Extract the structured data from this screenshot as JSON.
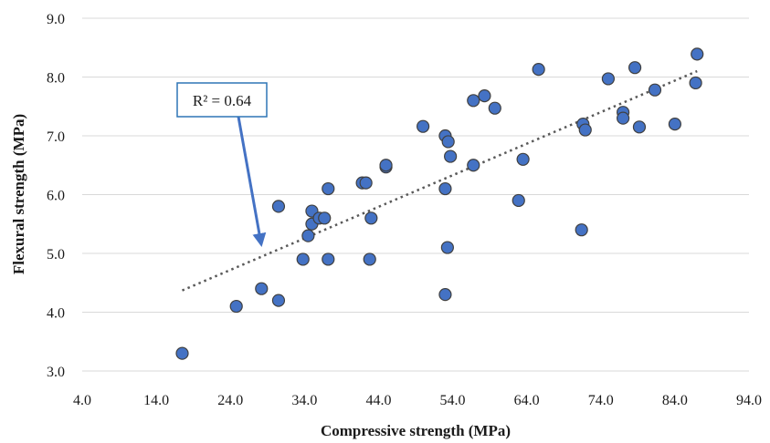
{
  "chart_data": {
    "type": "scatter",
    "title": "",
    "xlabel": "Compressive strength (MPa)",
    "ylabel": "Flexural strength (MPa)",
    "xlim": [
      4.0,
      94.0
    ],
    "ylim": [
      3.0,
      9.0
    ],
    "x_ticks": [
      "4.0",
      "14.0",
      "24.0",
      "34.0",
      "44.0",
      "54.0",
      "64.0",
      "74.0",
      "84.0",
      "94.0"
    ],
    "y_ticks": [
      "3.0",
      "4.0",
      "5.0",
      "6.0",
      "7.0",
      "8.0",
      "9.0"
    ],
    "grid": "horizontal",
    "legend": "none",
    "point_color": "#4472C4",
    "point_edge_color": "#404040",
    "trendline": {
      "type": "linear",
      "style": "dotted",
      "color": "#595959",
      "x": [
        17.5,
        87.0
      ],
      "y": [
        4.37,
        8.1
      ]
    },
    "annotation": {
      "text": "R² = 0.64",
      "arrow_color": "#4472C4",
      "box_border_color": "#2E75B6"
    },
    "series": [
      {
        "points": [
          [
            17.5,
            3.3
          ],
          [
            24.8,
            4.1
          ],
          [
            28.2,
            4.4
          ],
          [
            30.5,
            4.2
          ],
          [
            30.5,
            5.8
          ],
          [
            33.8,
            4.9
          ],
          [
            34.5,
            5.3
          ],
          [
            35.0,
            5.5
          ],
          [
            35.0,
            5.72
          ],
          [
            36.0,
            5.6
          ],
          [
            36.7,
            5.6
          ],
          [
            37.2,
            6.1
          ],
          [
            37.2,
            4.9
          ],
          [
            41.8,
            6.2
          ],
          [
            42.3,
            6.2
          ],
          [
            42.8,
            4.9
          ],
          [
            43.0,
            5.6
          ],
          [
            45.0,
            6.47
          ],
          [
            45.0,
            6.5
          ],
          [
            50.0,
            7.16
          ],
          [
            53.0,
            7.0
          ],
          [
            53.0,
            6.1
          ],
          [
            53.0,
            4.3
          ],
          [
            53.3,
            5.1
          ],
          [
            53.4,
            6.9
          ],
          [
            53.7,
            6.65
          ],
          [
            56.8,
            7.6
          ],
          [
            56.8,
            6.5
          ],
          [
            58.3,
            7.68
          ],
          [
            59.7,
            7.47
          ],
          [
            62.9,
            5.9
          ],
          [
            63.5,
            6.6
          ],
          [
            65.6,
            8.13
          ],
          [
            71.4,
            5.4
          ],
          [
            71.6,
            7.2
          ],
          [
            71.9,
            7.1
          ],
          [
            75.0,
            7.97
          ],
          [
            77.0,
            7.4
          ],
          [
            77.0,
            7.3
          ],
          [
            78.6,
            8.16
          ],
          [
            79.2,
            7.15
          ],
          [
            81.3,
            7.78
          ],
          [
            84.0,
            7.2
          ],
          [
            86.8,
            7.9
          ],
          [
            87.0,
            8.39
          ]
        ]
      }
    ]
  }
}
